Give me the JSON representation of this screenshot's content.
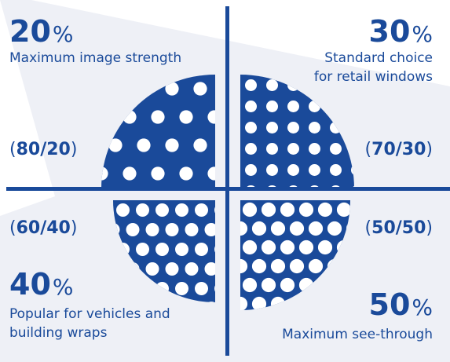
{
  "colors": {
    "accent": "#1a4a9a",
    "background_band": "#eef0f6"
  },
  "quadrants": [
    {
      "id": "top-left",
      "percent": "20",
      "percent_symbol": "%",
      "description_lines": [
        "Maximum image strength"
      ],
      "ratio": "80/20",
      "dot_density": 0.2
    },
    {
      "id": "top-right",
      "percent": "30",
      "percent_symbol": "%",
      "description_lines": [
        "Standard choice",
        "for retail windows"
      ],
      "ratio": "70/30",
      "dot_density": 0.3
    },
    {
      "id": "bottom-left",
      "percent": "40",
      "percent_symbol": "%",
      "description_lines": [
        "Popular for vehicles and",
        "building wraps"
      ],
      "ratio": "60/40",
      "dot_density": 0.4
    },
    {
      "id": "bottom-right",
      "percent": "50",
      "percent_symbol": "%",
      "description_lines": [
        "Maximum see-through"
      ],
      "ratio": "50/50",
      "dot_density": 0.5
    }
  ]
}
